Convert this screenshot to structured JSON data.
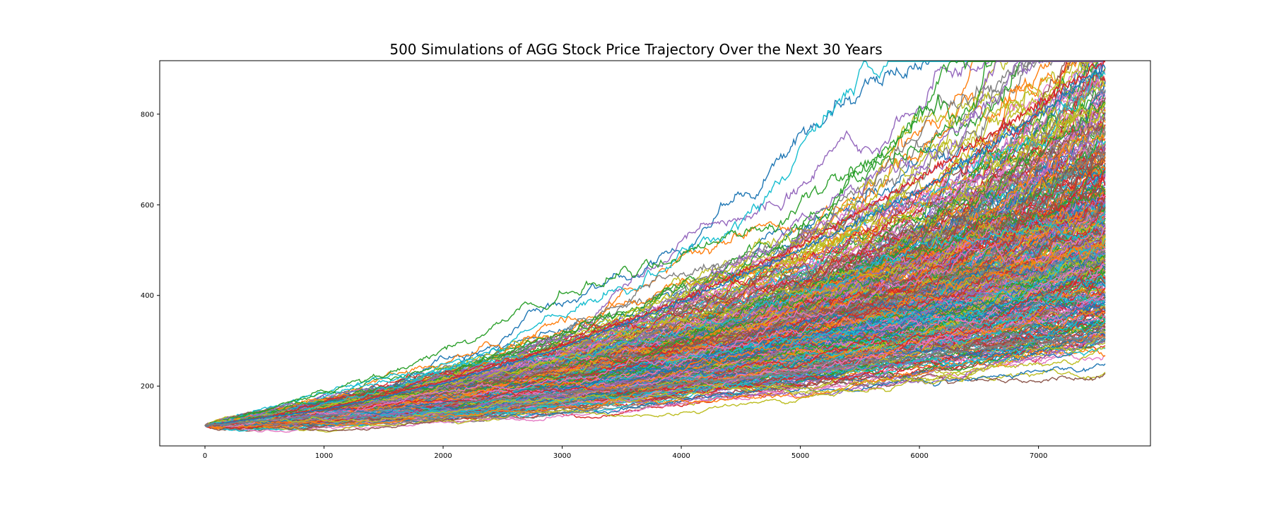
{
  "chart_data": {
    "type": "line",
    "title": "500 Simulations of AGG Stock Price Trajectory Over the Next 30 Years",
    "xlabel": "",
    "ylabel": "",
    "xlim": [
      -380,
      7940
    ],
    "ylim": [
      68,
      918
    ],
    "x_ticks": [
      0,
      1000,
      2000,
      3000,
      4000,
      5000,
      6000,
      7000
    ],
    "y_ticks": [
      200,
      400,
      600,
      800
    ],
    "grid": false,
    "legend": "none",
    "num_simulations": 500,
    "num_trading_days": 7560,
    "start_price": 113,
    "colors": [
      "#1f77b4",
      "#ff7f0e",
      "#2ca02c",
      "#d62728",
      "#9467bd",
      "#8c564b",
      "#e377c2",
      "#7f7f7f",
      "#bcbd22",
      "#17becf"
    ],
    "final_price_summary": {
      "min": 305,
      "median": 530,
      "max": 922
    },
    "highlighted_series": [
      {
        "name": "",
        "x": [
          0,
          1000,
          2000,
          3000,
          4000,
          5000,
          6000,
          7000,
          7560
        ],
        "y": [
          113,
          150,
          210,
          290,
          390,
          510,
          660,
          820,
          922
        ]
      },
      {
        "name": "",
        "x": [
          0,
          1000,
          2000,
          3000,
          4000,
          5000,
          6000,
          7000,
          7560
        ],
        "y": [
          113,
          148,
          205,
          285,
          385,
          500,
          630,
          800,
          905
        ]
      },
      {
        "name": "",
        "x": [
          0,
          1000,
          2000,
          3000,
          4000,
          5000,
          6000,
          7000,
          7560
        ],
        "y": [
          113,
          135,
          160,
          185,
          205,
          230,
          265,
          300,
          305
        ]
      }
    ]
  }
}
